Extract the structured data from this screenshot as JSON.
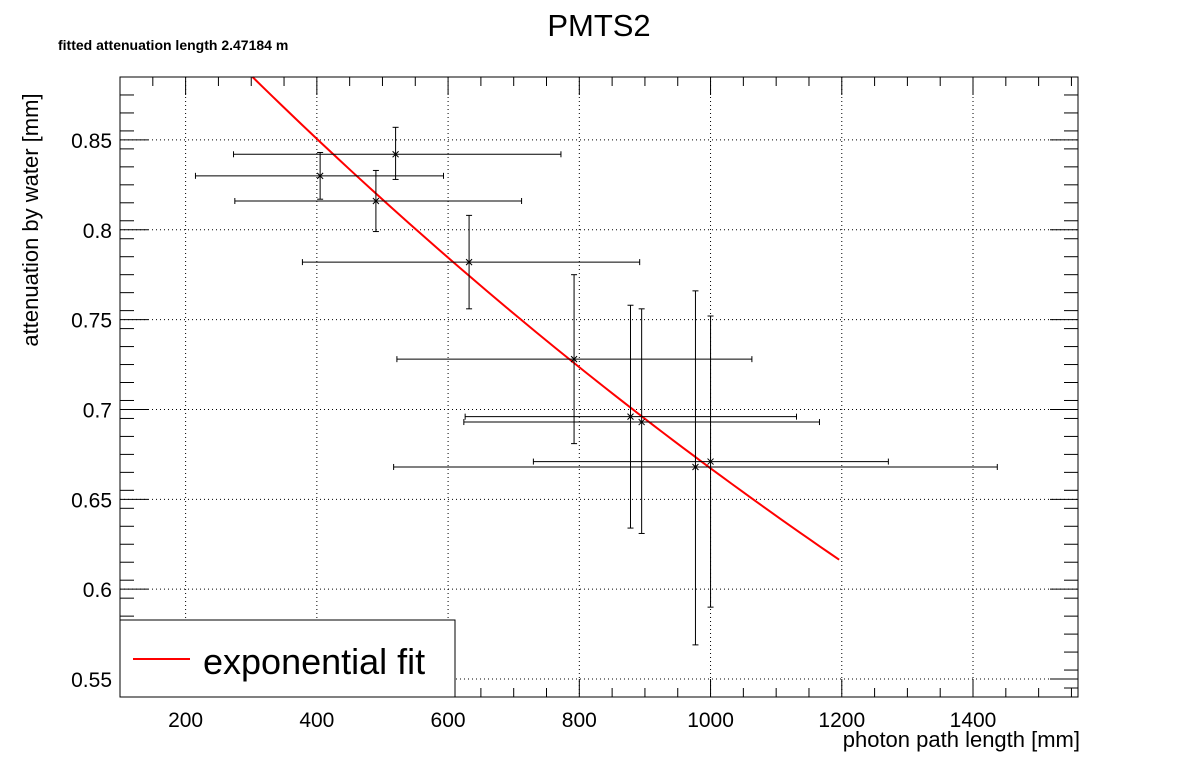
{
  "chart_data": {
    "type": "scatter",
    "title": "PMTS2",
    "subtitle": "fitted attenuation length 2.47184 m",
    "xlabel": "photon path length [mm]",
    "ylabel": "attenuation by water [mm]",
    "xlim": [
      100,
      1560
    ],
    "ylim": [
      0.54,
      0.885
    ],
    "xticks": [
      200,
      400,
      600,
      800,
      1000,
      1200,
      1400
    ],
    "yticks": [
      0.55,
      0.6,
      0.65,
      0.7,
      0.75,
      0.8,
      0.85
    ],
    "ytick_labels": [
      "0.55",
      "0.6",
      "0.65",
      "0.7",
      "0.75",
      "0.8",
      "0.85"
    ],
    "grid": true,
    "legend_position": "bottom-left",
    "series": [
      {
        "name": "",
        "kind": "points_with_errors",
        "color": "#000000",
        "points": [
          {
            "x": 405,
            "y": 0.83,
            "xlo": 215,
            "xhi": 593,
            "ylo": 0.817,
            "yhi": 0.843
          },
          {
            "x": 520,
            "y": 0.842,
            "xlo": 273,
            "xhi": 772,
            "ylo": 0.828,
            "yhi": 0.857
          },
          {
            "x": 490,
            "y": 0.816,
            "xlo": 275,
            "xhi": 712,
            "ylo": 0.799,
            "yhi": 0.833
          },
          {
            "x": 632,
            "y": 0.782,
            "xlo": 378,
            "xhi": 892,
            "ylo": 0.756,
            "yhi": 0.808
          },
          {
            "x": 792,
            "y": 0.728,
            "xlo": 522,
            "xhi": 1063,
            "ylo": 0.681,
            "yhi": 0.775
          },
          {
            "x": 878,
            "y": 0.696,
            "xlo": 626,
            "xhi": 1131,
            "ylo": 0.634,
            "yhi": 0.758
          },
          {
            "x": 895,
            "y": 0.693,
            "xlo": 624,
            "xhi": 1166,
            "ylo": 0.631,
            "yhi": 0.756
          },
          {
            "x": 977,
            "y": 0.668,
            "xlo": 517,
            "xhi": 1437,
            "ylo": 0.569,
            "yhi": 0.766
          },
          {
            "x": 1000,
            "y": 0.671,
            "xlo": 730,
            "xhi": 1271,
            "ylo": 0.59,
            "yhi": 0.752
          }
        ]
      },
      {
        "name": "exponential fit",
        "kind": "fit_line",
        "color": "#ff0000",
        "x": [
          302,
          1196
        ],
        "attenuation_length_mm": 2471.84,
        "amplitude": 1.0
      }
    ]
  }
}
